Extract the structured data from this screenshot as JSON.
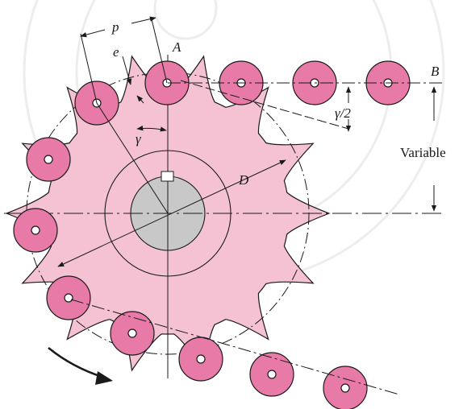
{
  "labels": {
    "p": "p",
    "A": "A",
    "e": "e",
    "B": "B",
    "gamma": "γ",
    "gamma_half": "γ/2",
    "D": "D",
    "variable": "Variable"
  },
  "colors": {
    "sprocket_fill": "#f5c2d4",
    "roller_fill": "#e87aa8",
    "hub_fill": "#c8c8c8",
    "line": "#1a1a1a"
  },
  "watermark": "university seal watermark"
}
